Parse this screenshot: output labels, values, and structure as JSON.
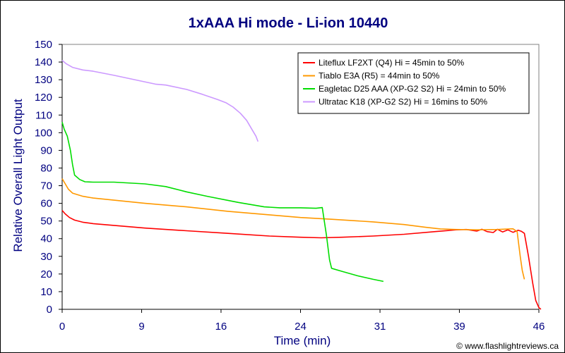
{
  "chart_data": {
    "type": "line",
    "title": "1xAAA Hi mode - Li-ion 10440",
    "xlabel": "Time (min)",
    "ylabel": "Relative Overall Light Output",
    "xlim": [
      0,
      46
    ],
    "ylim": [
      0,
      150
    ],
    "x_ticks": [
      "0",
      "9",
      "16",
      "24",
      "31",
      "39",
      "46"
    ],
    "x_tick_values": [
      0,
      7.67,
      15.33,
      23,
      30.67,
      38.33,
      46
    ],
    "y_ticks": [
      0,
      10,
      20,
      30,
      40,
      50,
      60,
      70,
      80,
      90,
      100,
      110,
      120,
      130,
      140,
      150
    ],
    "grid": "none",
    "legend_position": "top-right",
    "series": [
      {
        "name": "Liteflux LF2XT (Q4) Hi = 45min to 50%",
        "color": "#ff0000",
        "points": [
          [
            0,
            56
          ],
          [
            0.3,
            54
          ],
          [
            0.7,
            52
          ],
          [
            1.2,
            50.5
          ],
          [
            2,
            49.3
          ],
          [
            3,
            48.5
          ],
          [
            5,
            47.5
          ],
          [
            8,
            46
          ],
          [
            12,
            44.5
          ],
          [
            16,
            43
          ],
          [
            20,
            41.5
          ],
          [
            23,
            40.8
          ],
          [
            25,
            40.5
          ],
          [
            27,
            40.8
          ],
          [
            30,
            41.5
          ],
          [
            33,
            42.5
          ],
          [
            36,
            44
          ],
          [
            38,
            45
          ],
          [
            39,
            45.2
          ],
          [
            40,
            44.3
          ],
          [
            40.5,
            45.3
          ],
          [
            41,
            44
          ],
          [
            41.6,
            43.5
          ],
          [
            42,
            45.3
          ],
          [
            42.5,
            43.8
          ],
          [
            43,
            45
          ],
          [
            43.5,
            43.6
          ],
          [
            44,
            44.8
          ],
          [
            44.3,
            44.2
          ],
          [
            44.6,
            43
          ],
          [
            45,
            30
          ],
          [
            45.4,
            15
          ],
          [
            45.7,
            5
          ],
          [
            46,
            1
          ],
          [
            46.2,
            0
          ]
        ]
      },
      {
        "name": "Tiablo E3A (R5) = 44min to 50%",
        "color": "#ff9900",
        "points": [
          [
            0,
            74
          ],
          [
            0.3,
            71
          ],
          [
            0.6,
            68
          ],
          [
            1,
            65.8
          ],
          [
            2,
            64
          ],
          [
            3,
            63
          ],
          [
            5,
            61.8
          ],
          [
            8,
            60
          ],
          [
            12,
            58
          ],
          [
            16,
            55.5
          ],
          [
            20,
            53.5
          ],
          [
            23,
            52
          ],
          [
            26,
            51
          ],
          [
            30,
            49.5
          ],
          [
            33,
            48
          ],
          [
            35,
            46.5
          ],
          [
            36.5,
            45.5
          ],
          [
            38,
            45.2
          ],
          [
            40,
            45
          ],
          [
            42,
            45.2
          ],
          [
            43.5,
            45.6
          ],
          [
            43.9,
            44
          ],
          [
            44.2,
            30
          ],
          [
            44.4,
            22
          ],
          [
            44.6,
            17
          ]
        ]
      },
      {
        "name": "Eagletac D25 AAA (XP-G2 S2) Hi = 24min to 50%",
        "color": "#00dd00",
        "points": [
          [
            0,
            106
          ],
          [
            0.2,
            102
          ],
          [
            0.5,
            98
          ],
          [
            0.8,
            90
          ],
          [
            1,
            82
          ],
          [
            1.2,
            76
          ],
          [
            1.7,
            73.5
          ],
          [
            2.2,
            72.2
          ],
          [
            3,
            72
          ],
          [
            5,
            72
          ],
          [
            8,
            71
          ],
          [
            10,
            69.5
          ],
          [
            12,
            66.5
          ],
          [
            14,
            64
          ],
          [
            17,
            60.5
          ],
          [
            19.5,
            58
          ],
          [
            21,
            57.5
          ],
          [
            23,
            57.5
          ],
          [
            24.5,
            57.2
          ],
          [
            25.1,
            57.6
          ],
          [
            25.5,
            42
          ],
          [
            25.8,
            28
          ],
          [
            26,
            23.2
          ],
          [
            27,
            21.5
          ],
          [
            28.5,
            19
          ],
          [
            30,
            17
          ],
          [
            31,
            15.8
          ]
        ]
      },
      {
        "name": "Ultratac K18 (XP-G2 S2) Hi = 16mins to 50%",
        "color": "#cc99ff",
        "points": [
          [
            0,
            141
          ],
          [
            0.4,
            139
          ],
          [
            1,
            137
          ],
          [
            2,
            135.5
          ],
          [
            3,
            134.8
          ],
          [
            5,
            132.5
          ],
          [
            7,
            130
          ],
          [
            9,
            127.5
          ],
          [
            10,
            127
          ],
          [
            12,
            124.5
          ],
          [
            13.5,
            121.8
          ],
          [
            15,
            118.8
          ],
          [
            15.8,
            117
          ],
          [
            16.5,
            114.5
          ],
          [
            17.2,
            111
          ],
          [
            17.8,
            107
          ],
          [
            18.3,
            102
          ],
          [
            18.7,
            98
          ],
          [
            18.9,
            95
          ]
        ]
      }
    ]
  },
  "credit": "© www.flashlightreviews.ca"
}
